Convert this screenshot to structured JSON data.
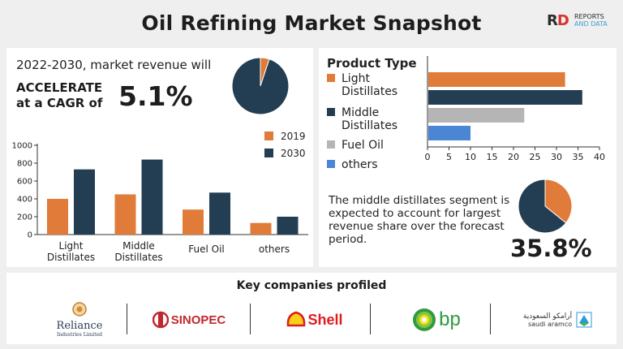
{
  "title": "Oil Refining Market Snapshot",
  "brand": {
    "mark_r": "R",
    "mark_d": "D",
    "line1": "REPORTS",
    "line2": "AND DATA"
  },
  "headline": {
    "period_text": "2022-2030, market revenue will",
    "accel_line1": "ACCELERATE",
    "accel_line2": "at a CAGR of",
    "cagr": "5.1%"
  },
  "product_type_heading": "Product Type",
  "segment_text": "The middle distillates segment is expected to account for largest revenue share over the forecast period.",
  "segment_share": "35.8%",
  "key_companies_heading": "Key companies profiled",
  "companies": [
    {
      "name": "Reliance",
      "sub": "Industries Limited"
    },
    {
      "name": "SINOPEC"
    },
    {
      "name": "Shell"
    },
    {
      "name": "bp"
    },
    {
      "name_ar": "أرامكو السعودية",
      "name": "saudi aramco"
    }
  ],
  "colors": {
    "orange": "#e07b39",
    "navy": "#233d53",
    "gray": "#b5b5b5",
    "blue": "#4a86d4"
  },
  "chart_data": [
    {
      "type": "pie",
      "values": [
        5.1,
        94.9
      ],
      "colors": [
        "#e07b39",
        "#233d53"
      ]
    },
    {
      "type": "bar",
      "categories": [
        "Light\nDistillates",
        "Middle\nDistillates",
        "Fuel Oil",
        "others"
      ],
      "series": [
        {
          "name": "2019",
          "values": [
            400,
            450,
            280,
            130
          ],
          "color": "#e07b39"
        },
        {
          "name": "2030",
          "values": [
            730,
            840,
            470,
            200
          ],
          "color": "#233d53"
        }
      ],
      "ylim": [
        0,
        1000
      ],
      "yticks": [
        0,
        200,
        400,
        600,
        800,
        1000
      ],
      "legend": "top-right"
    },
    {
      "type": "bar",
      "orientation": "horizontal",
      "categories": [
        "Light Distillates",
        "Middle Distillates",
        "Fuel Oil",
        "others"
      ],
      "legend_labels": [
        "Light\nDistillates",
        "Middle\nDistillates",
        "Fuel Oil",
        "others"
      ],
      "values": [
        32,
        36,
        22.5,
        10
      ],
      "colors": [
        "#e07b39",
        "#233d53",
        "#b5b5b5",
        "#4a86d4"
      ],
      "xlim": [
        0,
        40
      ],
      "xticks": [
        0,
        5,
        10,
        15,
        20,
        25,
        30,
        35,
        40
      ],
      "legend": "left"
    },
    {
      "type": "pie",
      "values": [
        35.8,
        64.2
      ],
      "colors": [
        "#e07b39",
        "#233d53"
      ]
    }
  ]
}
